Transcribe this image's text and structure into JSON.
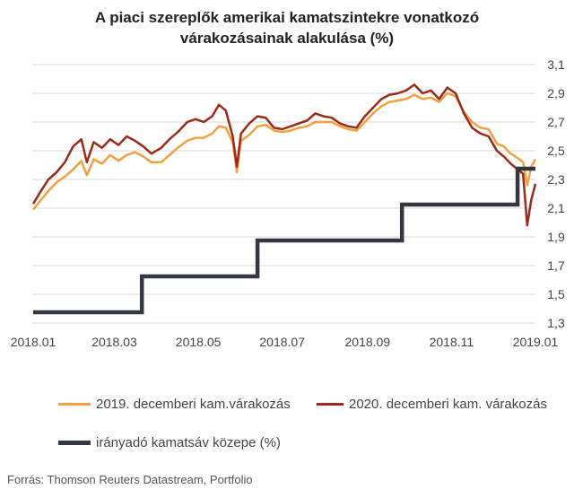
{
  "chart_data": {
    "type": "line",
    "title_line1": "A piaci szereplők amerikai kamatszintekre vonatkozó",
    "title_line2": "várakozásainak alakulása (%)",
    "x_ticks": [
      "2018.01",
      "2018.03",
      "2018.05",
      "2018.07",
      "2018.09",
      "2018.11",
      "2019.01"
    ],
    "x_range": [
      "2018-01-01",
      "2019-01-01"
    ],
    "y_ticks": [
      1.3,
      1.5,
      1.7,
      1.9,
      2.1,
      2.3,
      2.5,
      2.7,
      2.9,
      3.1
    ],
    "ylim": [
      1.3,
      3.1
    ],
    "y_axis_position": "right",
    "grid": true,
    "legend_position": "bottom",
    "series": [
      {
        "name": "2019. decemberi kam.várakozás",
        "color": "#F4A040",
        "points": [
          [
            "2018-01-01",
            2.09
          ],
          [
            "2018-01-06",
            2.15
          ],
          [
            "2018-01-12",
            2.22
          ],
          [
            "2018-01-18",
            2.28
          ],
          [
            "2018-01-24",
            2.32
          ],
          [
            "2018-01-30",
            2.37
          ],
          [
            "2018-02-05",
            2.43
          ],
          [
            "2018-02-09",
            2.33
          ],
          [
            "2018-02-14",
            2.44
          ],
          [
            "2018-02-20",
            2.41
          ],
          [
            "2018-02-26",
            2.47
          ],
          [
            "2018-03-04",
            2.43
          ],
          [
            "2018-03-10",
            2.47
          ],
          [
            "2018-03-16",
            2.49
          ],
          [
            "2018-03-22",
            2.46
          ],
          [
            "2018-03-28",
            2.42
          ],
          [
            "2018-04-04",
            2.42
          ],
          [
            "2018-04-10",
            2.47
          ],
          [
            "2018-04-16",
            2.52
          ],
          [
            "2018-04-23",
            2.57
          ],
          [
            "2018-04-29",
            2.59
          ],
          [
            "2018-05-05",
            2.59
          ],
          [
            "2018-05-11",
            2.62
          ],
          [
            "2018-05-16",
            2.67
          ],
          [
            "2018-05-21",
            2.66
          ],
          [
            "2018-05-26",
            2.56
          ],
          [
            "2018-05-29",
            2.35
          ],
          [
            "2018-06-01",
            2.57
          ],
          [
            "2018-06-07",
            2.61
          ],
          [
            "2018-06-13",
            2.67
          ],
          [
            "2018-06-19",
            2.68
          ],
          [
            "2018-06-25",
            2.64
          ],
          [
            "2018-07-01",
            2.63
          ],
          [
            "2018-07-07",
            2.64
          ],
          [
            "2018-07-13",
            2.66
          ],
          [
            "2018-07-19",
            2.67
          ],
          [
            "2018-07-25",
            2.7
          ],
          [
            "2018-07-31",
            2.7
          ],
          [
            "2018-08-06",
            2.7
          ],
          [
            "2018-08-12",
            2.67
          ],
          [
            "2018-08-18",
            2.65
          ],
          [
            "2018-08-24",
            2.64
          ],
          [
            "2018-08-30",
            2.7
          ],
          [
            "2018-09-05",
            2.76
          ],
          [
            "2018-09-11",
            2.81
          ],
          [
            "2018-09-17",
            2.84
          ],
          [
            "2018-09-23",
            2.85
          ],
          [
            "2018-09-29",
            2.86
          ],
          [
            "2018-10-05",
            2.89
          ],
          [
            "2018-10-11",
            2.86
          ],
          [
            "2018-10-17",
            2.87
          ],
          [
            "2018-10-23",
            2.84
          ],
          [
            "2018-10-29",
            2.9
          ],
          [
            "2018-11-04",
            2.88
          ],
          [
            "2018-11-10",
            2.77
          ],
          [
            "2018-11-16",
            2.7
          ],
          [
            "2018-11-22",
            2.66
          ],
          [
            "2018-11-28",
            2.65
          ],
          [
            "2018-12-04",
            2.55
          ],
          [
            "2018-12-09",
            2.53
          ],
          [
            "2018-12-14",
            2.48
          ],
          [
            "2018-12-19",
            2.45
          ],
          [
            "2018-12-23",
            2.42
          ],
          [
            "2018-12-26",
            2.26
          ],
          [
            "2018-12-29",
            2.39
          ],
          [
            "2019-01-01",
            2.44
          ]
        ]
      },
      {
        "name": "2020. decemberi kam. várakozás",
        "color": "#9B2A1A",
        "points": [
          [
            "2018-01-01",
            2.13
          ],
          [
            "2018-01-06",
            2.21
          ],
          [
            "2018-01-12",
            2.3
          ],
          [
            "2018-01-18",
            2.35
          ],
          [
            "2018-01-24",
            2.42
          ],
          [
            "2018-01-30",
            2.53
          ],
          [
            "2018-02-05",
            2.58
          ],
          [
            "2018-02-09",
            2.42
          ],
          [
            "2018-02-14",
            2.56
          ],
          [
            "2018-02-20",
            2.52
          ],
          [
            "2018-02-26",
            2.58
          ],
          [
            "2018-03-04",
            2.54
          ],
          [
            "2018-03-10",
            2.6
          ],
          [
            "2018-03-16",
            2.57
          ],
          [
            "2018-03-22",
            2.53
          ],
          [
            "2018-03-28",
            2.48
          ],
          [
            "2018-04-04",
            2.52
          ],
          [
            "2018-04-10",
            2.58
          ],
          [
            "2018-04-16",
            2.63
          ],
          [
            "2018-04-23",
            2.7
          ],
          [
            "2018-04-29",
            2.72
          ],
          [
            "2018-05-05",
            2.7
          ],
          [
            "2018-05-11",
            2.74
          ],
          [
            "2018-05-16",
            2.82
          ],
          [
            "2018-05-21",
            2.78
          ],
          [
            "2018-05-26",
            2.6
          ],
          [
            "2018-05-29",
            2.39
          ],
          [
            "2018-06-01",
            2.62
          ],
          [
            "2018-06-07",
            2.69
          ],
          [
            "2018-06-13",
            2.74
          ],
          [
            "2018-06-19",
            2.73
          ],
          [
            "2018-06-25",
            2.66
          ],
          [
            "2018-07-01",
            2.65
          ],
          [
            "2018-07-07",
            2.67
          ],
          [
            "2018-07-13",
            2.69
          ],
          [
            "2018-07-19",
            2.71
          ],
          [
            "2018-07-25",
            2.76
          ],
          [
            "2018-07-31",
            2.74
          ],
          [
            "2018-08-06",
            2.73
          ],
          [
            "2018-08-12",
            2.69
          ],
          [
            "2018-08-18",
            2.67
          ],
          [
            "2018-08-24",
            2.66
          ],
          [
            "2018-08-30",
            2.74
          ],
          [
            "2018-09-05",
            2.8
          ],
          [
            "2018-09-11",
            2.86
          ],
          [
            "2018-09-17",
            2.89
          ],
          [
            "2018-09-23",
            2.9
          ],
          [
            "2018-09-29",
            2.92
          ],
          [
            "2018-10-05",
            2.96
          ],
          [
            "2018-10-11",
            2.9
          ],
          [
            "2018-10-17",
            2.92
          ],
          [
            "2018-10-23",
            2.86
          ],
          [
            "2018-10-29",
            2.94
          ],
          [
            "2018-11-04",
            2.9
          ],
          [
            "2018-11-10",
            2.76
          ],
          [
            "2018-11-16",
            2.66
          ],
          [
            "2018-11-22",
            2.62
          ],
          [
            "2018-11-28",
            2.6
          ],
          [
            "2018-12-04",
            2.5
          ],
          [
            "2018-12-09",
            2.46
          ],
          [
            "2018-12-14",
            2.41
          ],
          [
            "2018-12-19",
            2.37
          ],
          [
            "2018-12-23",
            2.34
          ],
          [
            "2018-12-26",
            1.98
          ],
          [
            "2018-12-29",
            2.16
          ],
          [
            "2019-01-01",
            2.27
          ]
        ]
      },
      {
        "name": "irányadó kamatsáv közepe (%)",
        "color": "#333740",
        "step": true,
        "points": [
          [
            "2018-01-01",
            1.375
          ],
          [
            "2018-03-21",
            1.375
          ],
          [
            "2018-03-21",
            1.625
          ],
          [
            "2018-06-13",
            1.625
          ],
          [
            "2018-06-13",
            1.875
          ],
          [
            "2018-09-26",
            1.875
          ],
          [
            "2018-09-26",
            2.125
          ],
          [
            "2018-12-19",
            2.125
          ],
          [
            "2018-12-19",
            2.375
          ],
          [
            "2019-01-01",
            2.375
          ]
        ]
      }
    ]
  },
  "source": "Forrás: Thomson Reuters Datastream, Portfolio"
}
